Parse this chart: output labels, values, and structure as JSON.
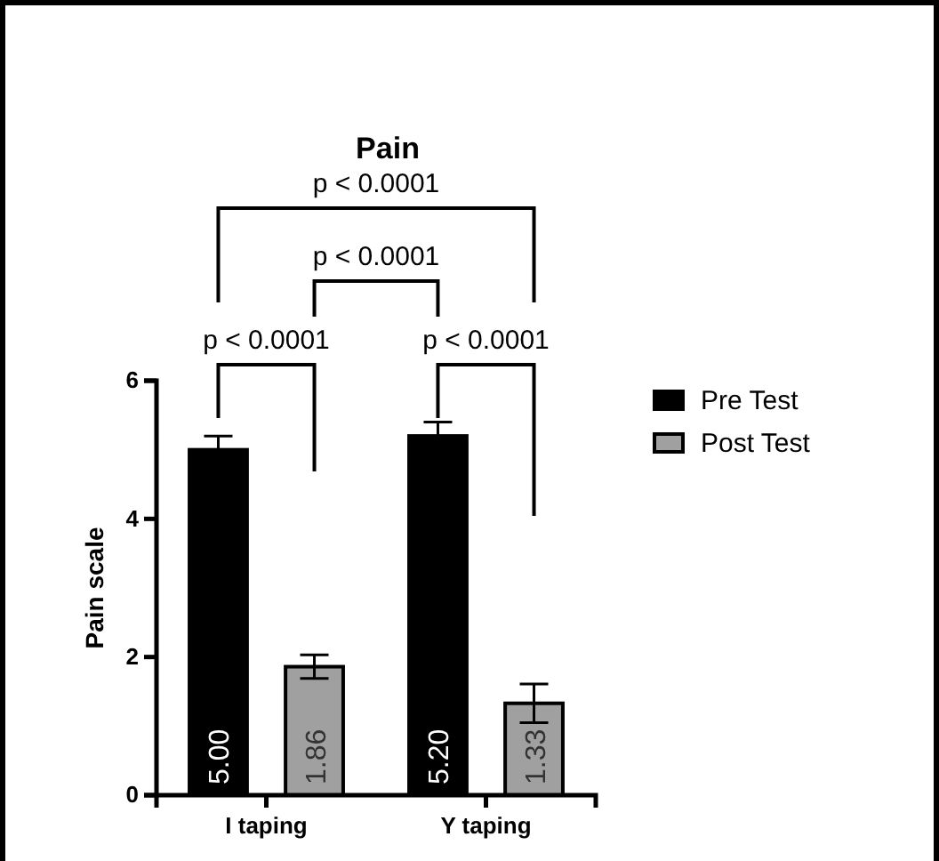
{
  "chart_data": {
    "type": "bar",
    "title": "Pain",
    "ylabel": "Pain scale",
    "categories": [
      "I taping",
      "Y taping"
    ],
    "series": [
      {
        "name": "Pre Test",
        "color": "#000000",
        "values": [
          5.0,
          5.2
        ],
        "errors": [
          0.2,
          0.2
        ],
        "value_labels": [
          "5.00",
          "5.20"
        ]
      },
      {
        "name": "Post Test",
        "color": "#a0a0a0",
        "values": [
          1.86,
          1.33
        ],
        "errors": [
          0.17,
          0.28
        ],
        "value_labels": [
          "1.86",
          "1.33"
        ]
      }
    ],
    "ylim": [
      0,
      6
    ],
    "yticks": [
      0,
      2,
      4,
      6
    ],
    "grid": false,
    "legend": "right",
    "annotations": [
      "p < 0.0001",
      "p < 0.0001",
      "p < 0.0001",
      "p < 0.0001"
    ]
  }
}
